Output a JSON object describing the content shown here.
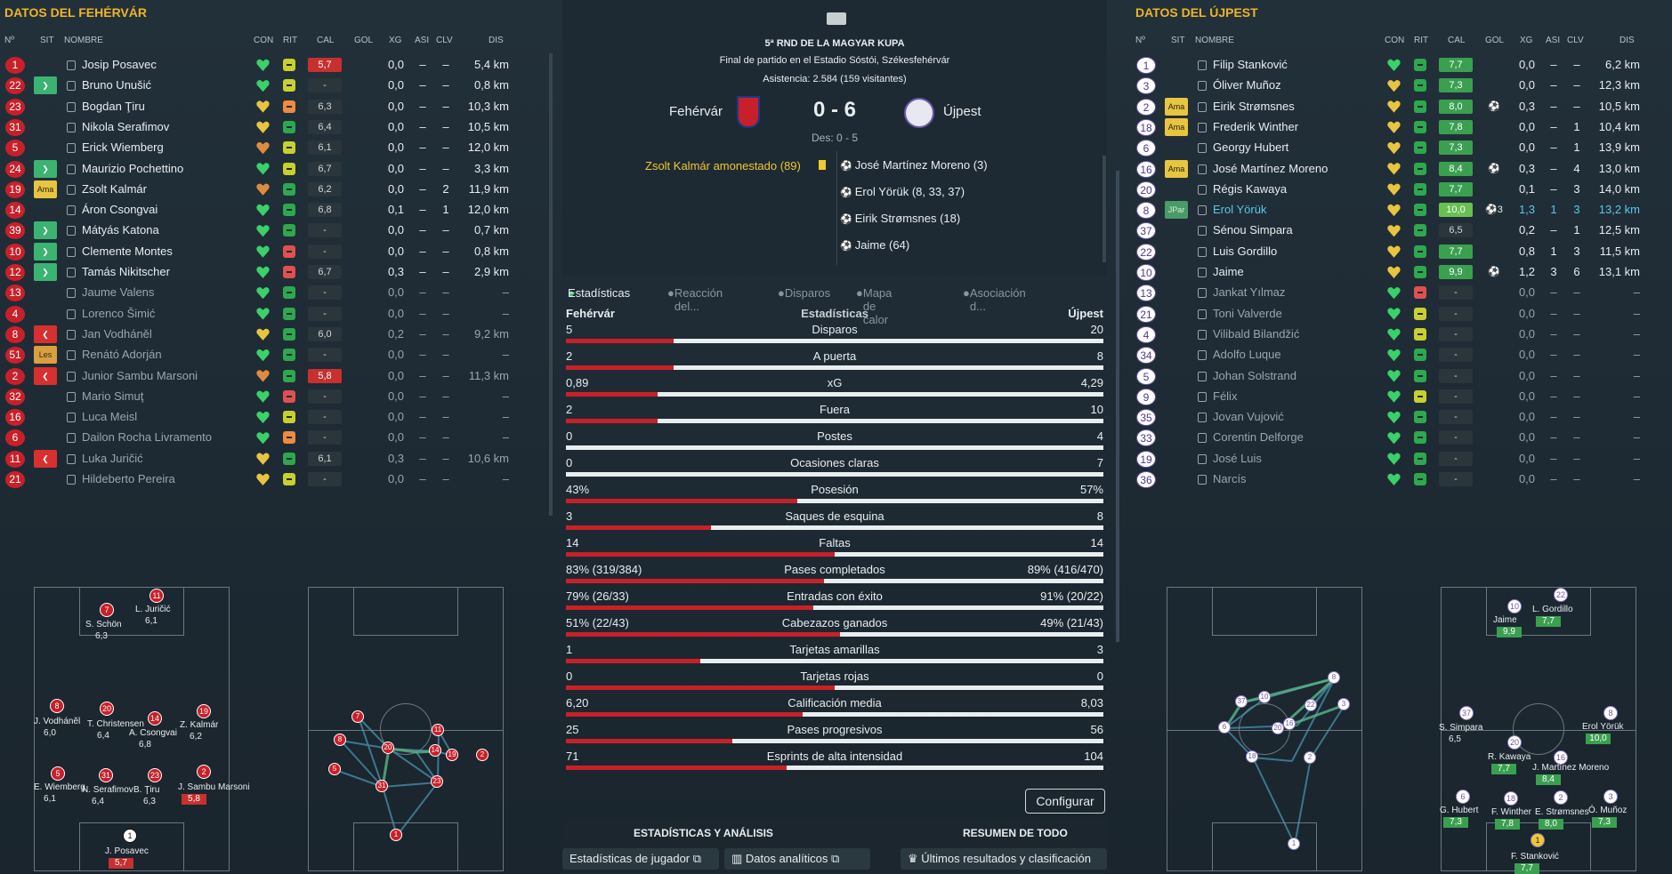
{
  "left": {
    "title": "DATOS DEL FEHÉRVÁR",
    "headers": {
      "num": "Nº",
      "sit": "SIT",
      "name": "NOMBRE",
      "con": "CON",
      "rit": "RIT",
      "cal": "CAL",
      "gol": "GOL",
      "xg": "XG",
      "asi": "ASI",
      "clv": "CLV",
      "dis": "DIS"
    },
    "rows": [
      {
        "num": "1",
        "sit": "",
        "name": "Josip Posavec",
        "con": "green",
        "rit": "eq",
        "cal": "5,7",
        "calc": "red",
        "gol": "",
        "xg": "0,0",
        "asi": "–",
        "clv": "–",
        "dis": "5,4 km",
        "dim": false
      },
      {
        "num": "22",
        "sit": "in",
        "name": "Bruno Unušić",
        "con": "green",
        "rit": "eq",
        "cal": "-",
        "calc": "",
        "gol": "",
        "xg": "0,0",
        "asi": "–",
        "clv": "–",
        "dis": "0,8 km",
        "dim": false
      },
      {
        "num": "23",
        "sit": "",
        "name": "Bogdan Ţiru",
        "con": "yellow",
        "rit": "or",
        "cal": "6,3",
        "calc": "",
        "gol": "",
        "xg": "0,0",
        "asi": "–",
        "clv": "–",
        "dis": "10,3 km",
        "dim": false
      },
      {
        "num": "31",
        "sit": "",
        "name": "Nikola Serafimov",
        "con": "yellow",
        "rit": "up",
        "cal": "6,4",
        "calc": "",
        "gol": "",
        "xg": "0,0",
        "asi": "–",
        "clv": "–",
        "dis": "10,5 km",
        "dim": false
      },
      {
        "num": "5",
        "sit": "",
        "name": "Erick Wiemberg",
        "con": "orange",
        "rit": "eq",
        "cal": "6,1",
        "calc": "",
        "gol": "",
        "xg": "0,0",
        "asi": "–",
        "clv": "–",
        "dis": "12,0 km",
        "dim": false
      },
      {
        "num": "24",
        "sit": "in",
        "name": "Maurizio Pochettino",
        "con": "green",
        "rit": "eq",
        "cal": "6,7",
        "calc": "",
        "gol": "",
        "xg": "0,0",
        "asi": "–",
        "clv": "–",
        "dis": "3,3 km",
        "dim": false
      },
      {
        "num": "19",
        "sit": "Ama",
        "name": "Zsolt Kalmár",
        "con": "orange",
        "rit": "up",
        "cal": "6,2",
        "calc": "",
        "gol": "",
        "xg": "0,0",
        "asi": "–",
        "clv": "2",
        "dis": "11,9 km",
        "dim": false
      },
      {
        "num": "14",
        "sit": "",
        "name": "Áron Csongvai",
        "con": "green",
        "rit": "up",
        "cal": "6,8",
        "calc": "",
        "gol": "",
        "xg": "0,1",
        "asi": "–",
        "clv": "1",
        "dis": "12,0 km",
        "dim": false
      },
      {
        "num": "39",
        "sit": "in",
        "name": "Mátyás Katona",
        "con": "green",
        "rit": "up",
        "cal": "-",
        "calc": "",
        "gol": "",
        "xg": "0,0",
        "asi": "–",
        "clv": "–",
        "dis": "0,7 km",
        "dim": false
      },
      {
        "num": "10",
        "sit": "in",
        "name": "Clemente Montes",
        "con": "green",
        "rit": "dn",
        "cal": "-",
        "calc": "",
        "gol": "",
        "xg": "0,0",
        "asi": "–",
        "clv": "–",
        "dis": "0,8 km",
        "dim": false
      },
      {
        "num": "12",
        "sit": "in",
        "name": "Tamás Nikitscher",
        "con": "green",
        "rit": "dn",
        "cal": "6,7",
        "calc": "",
        "gol": "",
        "xg": "0,3",
        "asi": "–",
        "clv": "–",
        "dis": "2,9 km",
        "dim": false
      },
      {
        "num": "13",
        "sit": "",
        "name": "Jaume Valens",
        "con": "green",
        "rit": "up",
        "cal": "-",
        "calc": "",
        "gol": "",
        "xg": "0,0",
        "asi": "–",
        "clv": "–",
        "dis": "–",
        "dim": true
      },
      {
        "num": "4",
        "sit": "",
        "name": "Lorenco Šimić",
        "con": "green",
        "rit": "up",
        "cal": "-",
        "calc": "",
        "gol": "",
        "xg": "0,0",
        "asi": "–",
        "clv": "–",
        "dis": "–",
        "dim": true
      },
      {
        "num": "8",
        "sit": "out",
        "name": "Jan Vodháněl",
        "con": "yellow",
        "rit": "up",
        "cal": "6,0",
        "calc": "",
        "gol": "",
        "xg": "0,2",
        "asi": "–",
        "clv": "–",
        "dis": "9,2 km",
        "dim": true
      },
      {
        "num": "51",
        "sit": "Les",
        "name": "Renátó Adorján",
        "con": "green",
        "rit": "up",
        "cal": "-",
        "calc": "",
        "gol": "",
        "xg": "0,0",
        "asi": "–",
        "clv": "–",
        "dis": "–",
        "dim": true
      },
      {
        "num": "2",
        "sit": "out",
        "name": "Junior Sambu Marsoni",
        "con": "orange",
        "rit": "up",
        "cal": "5,8",
        "calc": "red",
        "gol": "",
        "xg": "0,0",
        "asi": "–",
        "clv": "–",
        "dis": "11,3 km",
        "dim": true
      },
      {
        "num": "32",
        "sit": "",
        "name": "Mario Simuţ",
        "con": "green",
        "rit": "dn",
        "cal": "-",
        "calc": "",
        "gol": "",
        "xg": "0,0",
        "asi": "–",
        "clv": "–",
        "dis": "–",
        "dim": true
      },
      {
        "num": "16",
        "sit": "",
        "name": "Luca Meisl",
        "con": "green",
        "rit": "eq",
        "cal": "-",
        "calc": "",
        "gol": "",
        "xg": "0,0",
        "asi": "–",
        "clv": "–",
        "dis": "–",
        "dim": true
      },
      {
        "num": "6",
        "sit": "",
        "name": "Dailon Rocha Livramento",
        "con": "green",
        "rit": "or",
        "cal": "-",
        "calc": "",
        "gol": "",
        "xg": "0,0",
        "asi": "–",
        "clv": "–",
        "dis": "–",
        "dim": true
      },
      {
        "num": "11",
        "sit": "out",
        "name": "Luka Juričić",
        "con": "yellow",
        "rit": "up",
        "cal": "6,1",
        "calc": "",
        "gol": "",
        "xg": "0,3",
        "asi": "–",
        "clv": "–",
        "dis": "10,6 km",
        "dim": true
      },
      {
        "num": "21",
        "sit": "",
        "name": "Hildeberto Pereira",
        "con": "yellow",
        "rit": "eq",
        "cal": "-",
        "calc": "",
        "gol": "",
        "xg": "0,0",
        "asi": "–",
        "clv": "–",
        "dis": "–",
        "dim": true
      }
    ],
    "formation": [
      {
        "n": "11",
        "label": "L. Juričić",
        "rate": "6,1"
      },
      {
        "n": "7",
        "label": "S. Schön",
        "rate": "6,3"
      },
      {
        "n": "8",
        "label": "J. Vodháněl",
        "rate": "6,0"
      },
      {
        "n": "20",
        "label": "T. Christensen",
        "rate": "6,4"
      },
      {
        "n": "14",
        "label": "A. Csongvai",
        "rate": "6,8"
      },
      {
        "n": "19",
        "label": "Z. Kalmár",
        "rate": "6,2"
      },
      {
        "n": "5",
        "label": "E. Wiemberg",
        "rate": "6,1"
      },
      {
        "n": "31",
        "label": "N. Serafimov",
        "rate": "6,4"
      },
      {
        "n": "23",
        "label": "B. Ţiru",
        "rate": "6,3"
      },
      {
        "n": "2",
        "label": "J. Sambu Marsoni",
        "rate": "5,8"
      },
      {
        "n": "1",
        "label": "J. Posavec",
        "rate": "5,7"
      }
    ]
  },
  "right": {
    "title": "DATOS DEL ÚJPEST",
    "headers": {
      "num": "Nº",
      "sit": "SIT",
      "name": "NOMBRE",
      "con": "CON",
      "rit": "RIT",
      "cal": "CAL",
      "gol": "GOL",
      "xg": "XG",
      "asi": "ASI",
      "clv": "CLV",
      "dis": "DIS"
    },
    "rows": [
      {
        "num": "1",
        "sit": "",
        "name": "Filip Stanković",
        "con": "green",
        "rit": "up",
        "cal": "7,7",
        "calc": "green",
        "gol": "",
        "xg": "0,0",
        "asi": "–",
        "clv": "–",
        "dis": "6,2 km",
        "dim": false
      },
      {
        "num": "3",
        "sit": "",
        "name": "Óliver Muñoz",
        "con": "yellow",
        "rit": "up",
        "cal": "7,3",
        "calc": "green",
        "gol": "",
        "xg": "0,0",
        "asi": "–",
        "clv": "–",
        "dis": "12,3 km",
        "dim": false
      },
      {
        "num": "2",
        "sit": "Ama",
        "name": "Eirik Strømsnes",
        "con": "yellow",
        "rit": "up",
        "cal": "8,0",
        "calc": "green",
        "gol": "⚽",
        "xg": "0,3",
        "asi": "–",
        "clv": "–",
        "dis": "10,5 km",
        "dim": false
      },
      {
        "num": "18",
        "sit": "Ama",
        "name": "Frederik Winther",
        "con": "yellow",
        "rit": "up",
        "cal": "7,8",
        "calc": "green",
        "gol": "",
        "xg": "0,0",
        "asi": "–",
        "clv": "1",
        "dis": "10,4 km",
        "dim": false
      },
      {
        "num": "6",
        "sit": "",
        "name": "Georgy Hubert",
        "con": "yellow",
        "rit": "up",
        "cal": "7,3",
        "calc": "green",
        "gol": "",
        "xg": "0,0",
        "asi": "–",
        "clv": "1",
        "dis": "13,9 km",
        "dim": false
      },
      {
        "num": "16",
        "sit": "Ama",
        "name": "José Martínez Moreno",
        "con": "yellow",
        "rit": "up",
        "cal": "8,4",
        "calc": "green",
        "gol": "⚽",
        "xg": "0,3",
        "asi": "–",
        "clv": "4",
        "dis": "13,0 km",
        "dim": false
      },
      {
        "num": "20",
        "sit": "",
        "name": "Régis Kawaya",
        "con": "yellow",
        "rit": "up",
        "cal": "7,7",
        "calc": "green",
        "gol": "",
        "xg": "0,1",
        "asi": "–",
        "clv": "3",
        "dis": "14,0 km",
        "dim": false
      },
      {
        "num": "8",
        "sit": "JPar",
        "name": "Erol Yörük",
        "con": "yellow",
        "rit": "up",
        "cal": "10,0",
        "calc": "lgreen",
        "gol": "⚽3",
        "xg": "1,3",
        "asi": "1",
        "clv": "3",
        "dis": "13,2 km",
        "dim": false,
        "hl": true
      },
      {
        "num": "37",
        "sit": "",
        "name": "Sénou Simpara",
        "con": "yellow",
        "rit": "up",
        "cal": "6,5",
        "calc": "",
        "gol": "",
        "xg": "0,2",
        "asi": "–",
        "clv": "1",
        "dis": "12,5 km",
        "dim": false
      },
      {
        "num": "22",
        "sit": "",
        "name": "Luis Gordillo",
        "con": "yellow",
        "rit": "up",
        "cal": "7,7",
        "calc": "green",
        "gol": "",
        "xg": "0,8",
        "asi": "1",
        "clv": "3",
        "dis": "11,5 km",
        "dim": false
      },
      {
        "num": "10",
        "sit": "",
        "name": "Jaime",
        "con": "yellow",
        "rit": "up",
        "cal": "9,9",
        "calc": "green",
        "gol": "⚽",
        "xg": "1,2",
        "asi": "3",
        "clv": "6",
        "dis": "13,1 km",
        "dim": false
      },
      {
        "num": "13",
        "sit": "",
        "name": "Jankat Yılmaz",
        "con": "green",
        "rit": "dn",
        "cal": "-",
        "calc": "",
        "gol": "",
        "xg": "0,0",
        "asi": "–",
        "clv": "–",
        "dis": "–",
        "dim": true
      },
      {
        "num": "21",
        "sit": "",
        "name": "Toni Valverde",
        "con": "green",
        "rit": "eq",
        "cal": "-",
        "calc": "",
        "gol": "",
        "xg": "0,0",
        "asi": "–",
        "clv": "–",
        "dis": "–",
        "dim": true
      },
      {
        "num": "4",
        "sit": "",
        "name": "Vilibald Bilandžić",
        "con": "green",
        "rit": "eq",
        "cal": "-",
        "calc": "",
        "gol": "",
        "xg": "0,0",
        "asi": "–",
        "clv": "–",
        "dis": "–",
        "dim": true
      },
      {
        "num": "34",
        "sit": "",
        "name": "Adolfo Luque",
        "con": "green",
        "rit": "up",
        "cal": "-",
        "calc": "",
        "gol": "",
        "xg": "0,0",
        "asi": "–",
        "clv": "–",
        "dis": "–",
        "dim": true
      },
      {
        "num": "5",
        "sit": "",
        "name": "Johan Solstrand",
        "con": "green",
        "rit": "up",
        "cal": "-",
        "calc": "",
        "gol": "",
        "xg": "0,0",
        "asi": "–",
        "clv": "–",
        "dis": "–",
        "dim": true
      },
      {
        "num": "9",
        "sit": "",
        "name": "Félix",
        "con": "green",
        "rit": "eq",
        "cal": "-",
        "calc": "",
        "gol": "",
        "xg": "0,0",
        "asi": "–",
        "clv": "–",
        "dis": "–",
        "dim": true
      },
      {
        "num": "35",
        "sit": "",
        "name": "Jovan Vujović",
        "con": "green",
        "rit": "up",
        "cal": "-",
        "calc": "",
        "gol": "",
        "xg": "0,0",
        "asi": "–",
        "clv": "–",
        "dis": "–",
        "dim": true
      },
      {
        "num": "33",
        "sit": "",
        "name": "Corentin Delforge",
        "con": "green",
        "rit": "up",
        "cal": "-",
        "calc": "",
        "gol": "",
        "xg": "0,0",
        "asi": "–",
        "clv": "–",
        "dis": "–",
        "dim": true
      },
      {
        "num": "19",
        "sit": "",
        "name": "José Luis",
        "con": "green",
        "rit": "up",
        "cal": "-",
        "calc": "",
        "gol": "",
        "xg": "0,0",
        "asi": "–",
        "clv": "–",
        "dis": "–",
        "dim": true
      },
      {
        "num": "36",
        "sit": "",
        "name": "Narcís",
        "con": "green",
        "rit": "up",
        "cal": "-",
        "calc": "",
        "gol": "",
        "xg": "0,0",
        "asi": "–",
        "clv": "–",
        "dis": "–",
        "dim": true
      }
    ],
    "formation": [
      {
        "n": "10",
        "label": "Jaime",
        "rate": "9,9"
      },
      {
        "n": "22",
        "label": "L. Gordillo",
        "rate": "7,7"
      },
      {
        "n": "37",
        "label": "S. Simpara",
        "rate": "6,5"
      },
      {
        "n": "20",
        "label": "R. Kawaya",
        "rate": "7,7"
      },
      {
        "n": "16",
        "label": "J. Martínez Moreno",
        "rate": "8,4"
      },
      {
        "n": "8",
        "label": "Erol Yörük",
        "rate": "10,0"
      },
      {
        "n": "6",
        "label": "G. Hubert",
        "rate": "7,3"
      },
      {
        "n": "18",
        "label": "F. Winther",
        "rate": "7,8"
      },
      {
        "n": "2",
        "label": "E. Strømsnes",
        "rate": "8,0"
      },
      {
        "n": "3",
        "label": "Ó. Muñoz",
        "rate": "7,3"
      },
      {
        "n": "1",
        "label": "F. Stanković",
        "rate": "7,7"
      }
    ]
  },
  "match": {
    "competition": "5ª RND DE LA MAGYAR KUPA",
    "subtitle": "Final de partido en el Estadio Sóstói, Székesfehérvár",
    "attendance": "Asistencia: 2.584 (159 visitantes)",
    "home": "Fehérvár",
    "away": "Újpest",
    "score": "0 - 6",
    "halftime": "Des: 0 - 5",
    "home_event": "Zsolt Kalmár amonestado (89)",
    "away_events": [
      "José Martínez Moreno (3)",
      "Erol Yörük (8, 33, 37)",
      "Eirik Strømsnes (18)",
      "Jaime (64)"
    ]
  },
  "tabs": [
    "Estadísticas",
    "Reacción del...",
    "Disparos",
    "Mapa de calor",
    "Asociación d..."
  ],
  "stats_header": {
    "home": "Fehérvár",
    "title": "Estadísticas",
    "away": "Újpest"
  },
  "stats": [
    {
      "label": "Disparos",
      "home": "5",
      "away": "20",
      "share": 0.2
    },
    {
      "label": "A puerta",
      "home": "2",
      "away": "8",
      "share": 0.2
    },
    {
      "label": "xG",
      "home": "0,89",
      "away": "4,29",
      "share": 0.17
    },
    {
      "label": "Fuera",
      "home": "2",
      "away": "10",
      "share": 0.17
    },
    {
      "label": "Postes",
      "home": "0",
      "away": "4",
      "share": 0.0
    },
    {
      "label": "Ocasiones claras",
      "home": "0",
      "away": "7",
      "share": 0.0
    },
    {
      "label": "Posesión",
      "home": "43%",
      "away": "57%",
      "share": 0.43
    },
    {
      "label": "Saques de esquina",
      "home": "3",
      "away": "8",
      "share": 0.27
    },
    {
      "label": "Faltas",
      "home": "14",
      "away": "14",
      "share": 0.5
    },
    {
      "label": "Pases completados",
      "home": "83% (319/384)",
      "away": "89% (416/470)",
      "share": 0.48
    },
    {
      "label": "Entradas con éxito",
      "home": "79% (26/33)",
      "away": "91% (20/22)",
      "share": 0.46
    },
    {
      "label": "Cabezazos ganados",
      "home": "51% (22/43)",
      "away": "49% (21/43)",
      "share": 0.51
    },
    {
      "label": "Tarjetas amarillas",
      "home": "1",
      "away": "3",
      "share": 0.25
    },
    {
      "label": "Tarjetas rojas",
      "home": "0",
      "away": "0",
      "share": 0.5
    },
    {
      "label": "Calificación media",
      "home": "6,20",
      "away": "8,03",
      "share": 0.44
    },
    {
      "label": "Pases progresivos",
      "home": "25",
      "away": "56",
      "share": 0.31
    },
    {
      "label": "Esprints de alta intensidad",
      "home": "71",
      "away": "104",
      "share": 0.41
    }
  ],
  "configure_label": "Configurar",
  "footer": {
    "section1": "ESTADÍSTICAS Y ANÁLISIS",
    "section2": "RESUMEN DE TODO",
    "btn1": "Estadísticas de jugador",
    "btn2": "Datos analíticos",
    "btn3": "Últimos resultados y clasificación"
  },
  "colors": {
    "home": "#c8202a",
    "away": "#6a58a8",
    "accent": "#f0b429"
  }
}
